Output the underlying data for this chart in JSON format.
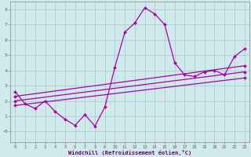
{
  "xlabel": "Windchill (Refroidissement éolien,°C)",
  "bg_color": "#d0eaec",
  "grid_color": "#aacdd2",
  "line_color": "#aa00aa",
  "spine_color": "#888888",
  "tick_color": "#660066",
  "xlim": [
    -0.5,
    23.5
  ],
  "ylim": [
    -0.7,
    8.5
  ],
  "xticks": [
    0,
    1,
    2,
    3,
    4,
    5,
    6,
    7,
    8,
    9,
    10,
    11,
    12,
    13,
    14,
    15,
    16,
    17,
    18,
    19,
    20,
    21,
    22,
    23
  ],
  "yticks": [
    0,
    1,
    2,
    3,
    4,
    5,
    6,
    7,
    8
  ],
  "ytick_labels": [
    "-0",
    "1",
    "2",
    "3",
    "4",
    "5",
    "6",
    "7",
    "8"
  ],
  "series1_x": [
    0,
    1,
    2,
    3,
    4,
    5,
    6,
    7,
    8,
    9,
    10,
    11,
    12,
    13,
    14,
    15,
    16,
    17,
    18,
    19,
    20,
    21,
    22,
    23
  ],
  "series1_y": [
    2.6,
    1.8,
    1.5,
    2.0,
    1.3,
    0.8,
    0.4,
    1.1,
    0.35,
    1.6,
    4.2,
    6.5,
    7.1,
    8.1,
    7.7,
    7.0,
    4.5,
    3.7,
    3.6,
    3.9,
    4.0,
    3.7,
    4.9,
    5.4
  ],
  "series2_x": [
    0,
    23
  ],
  "series2_y": [
    1.7,
    3.5
  ],
  "series3_x": [
    0,
    23
  ],
  "series3_y": [
    2.0,
    3.9
  ],
  "series4_x": [
    0,
    23
  ],
  "series4_y": [
    2.3,
    4.3
  ],
  "marker": "D",
  "marker_size": 2.0,
  "line_width": 0.9,
  "tick_fontsize": 4.0,
  "xlabel_fontsize": 5.0
}
